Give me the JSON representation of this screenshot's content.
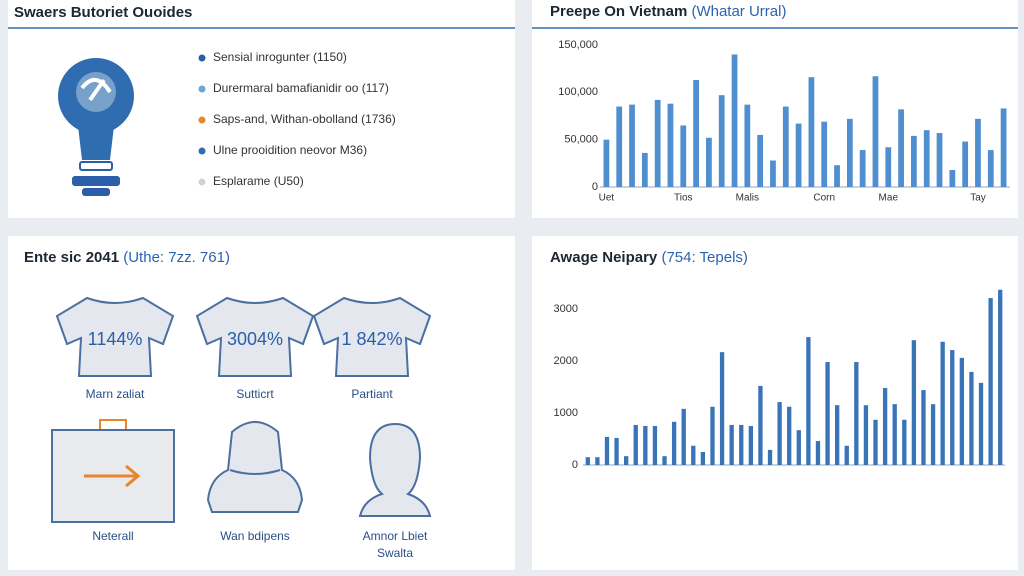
{
  "panels": {
    "overview": {
      "title": "Swaers Butoriet Ouoides",
      "legend": [
        {
          "label": "Sensial inrogunter (1150)",
          "color": "#2a5ea8"
        },
        {
          "label": "Durermaral bamafianidir oo (117)",
          "color": "#6aa6d8"
        },
        {
          "label": "Saps-and, Withan-obolland (1736)",
          "color": "#e8862a"
        },
        {
          "label": "Ulne prooidition neovor M36)",
          "color": "#2f6db0"
        },
        {
          "label": "Esplarame (U50)",
          "color": "#d0d4da"
        }
      ]
    },
    "people": {
      "title": "Ente sic 2041",
      "title_note": "(Uthe: 7zz. 761)",
      "shirts": [
        {
          "value": "1144%",
          "label": "Marn zaliat"
        },
        {
          "value": "3004%",
          "label": "Sutticrt"
        },
        {
          "value": "1 842%",
          "label": "Partiant"
        }
      ],
      "icons": [
        {
          "label": [
            "Neterall"
          ]
        },
        {
          "label": [
            "Wan bdipens"
          ]
        },
        {
          "label": [
            "Amnor Lbiet",
            "Swalta"
          ]
        }
      ]
    }
  },
  "chart_data": [
    {
      "type": "bar",
      "title": "Preepe On Vietnam",
      "title_note": "(Whatar Urral)",
      "categories": [
        "Uet",
        null,
        null,
        null,
        null,
        null,
        "Tios",
        null,
        null,
        null,
        null,
        "Malis",
        null,
        null,
        null,
        null,
        null,
        "Corn",
        null,
        null,
        null,
        null,
        "Mae",
        null,
        null,
        null,
        null,
        null,
        null,
        "Tay",
        null,
        null
      ],
      "values": [
        50000,
        85000,
        87000,
        36000,
        92000,
        88000,
        65000,
        113000,
        52000,
        97000,
        140000,
        87000,
        55000,
        28000,
        85000,
        67000,
        116000,
        69000,
        23000,
        72000,
        39000,
        117000,
        42000,
        82000,
        54000,
        60000,
        57000,
        18000,
        48000,
        72000,
        39000,
        83000
      ],
      "color": "#4f8fd0",
      "ylim": [
        0,
        150000
      ],
      "yticks": [
        0,
        {
          "value": 50000,
          "label": "50,000"
        },
        {
          "value": 100000,
          "label": "100,000"
        },
        {
          "value": 150000,
          "label": "150,000"
        }
      ],
      "grid": false
    },
    {
      "type": "bar",
      "title": "Awage Neipary",
      "title_note": "(754: Tepels)",
      "categories": [
        null,
        null,
        null,
        null,
        null,
        null,
        null,
        null,
        null,
        null,
        null,
        null,
        null,
        null,
        null,
        null,
        null,
        null,
        null,
        null,
        null,
        null,
        null,
        null,
        null,
        null,
        null,
        null,
        null,
        null,
        null,
        null,
        null,
        null,
        null,
        null,
        null,
        null,
        null,
        null,
        null,
        null,
        null,
        null
      ],
      "values": [
        150,
        150,
        540,
        520,
        170,
        770,
        750,
        750,
        170,
        830,
        1080,
        370,
        250,
        1120,
        2170,
        770,
        770,
        750,
        1520,
        290,
        1210,
        1120,
        670,
        2460,
        460,
        1980,
        1150,
        370,
        1980,
        1150,
        870,
        1480,
        1170,
        870,
        2400,
        1440,
        1170,
        2370,
        2210,
        2060,
        1790,
        1580,
        3210,
        3370
      ],
      "color": "#3a74b8",
      "ylim": [
        0,
        3400
      ],
      "yticks": [
        0,
        1000,
        2000,
        3000
      ],
      "grid": false
    }
  ]
}
